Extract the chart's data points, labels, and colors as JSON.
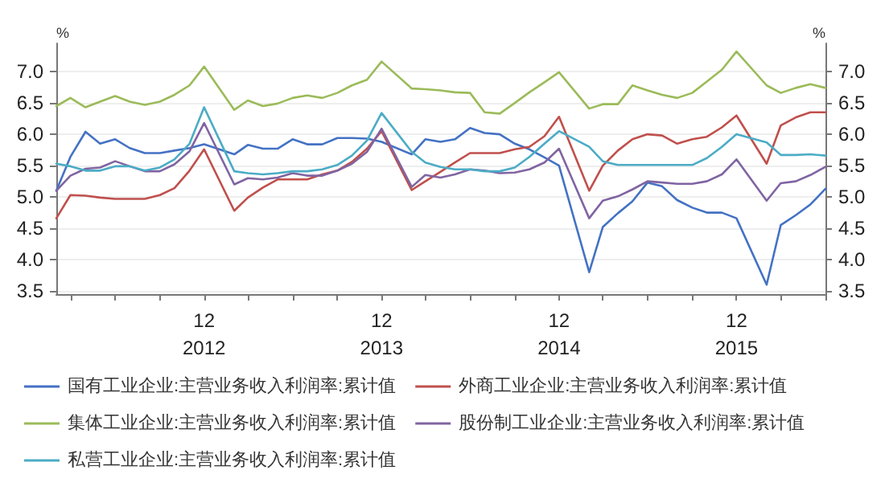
{
  "chart_data": {
    "type": "line",
    "ylabel": "%",
    "y2label": "%",
    "x": [
      "2012-02",
      "2012-03",
      "2012-04",
      "2012-05",
      "2012-06",
      "2012-07",
      "2012-08",
      "2012-09",
      "2012-10",
      "2012-11",
      "2012-12",
      "2013-02",
      "2013-03",
      "2013-04",
      "2013-05",
      "2013-06",
      "2013-07",
      "2013-08",
      "2013-09",
      "2013-10",
      "2013-11",
      "2013-12",
      "2014-02",
      "2014-03",
      "2014-04",
      "2014-05",
      "2014-06",
      "2014-07",
      "2014-08",
      "2014-09",
      "2014-10",
      "2014-11",
      "2014-12",
      "2015-02",
      "2015-03",
      "2015-04",
      "2015-05",
      "2015-06",
      "2015-07",
      "2015-08",
      "2015-09",
      "2015-10",
      "2015-11",
      "2015-12",
      "2016-02",
      "2016-03",
      "2016-04",
      "2016-05",
      "2016-06"
    ],
    "series": [
      {
        "name": "国有工业企业:主营业务收入利润率:累计值",
        "color": "#4472c4",
        "values": [
          5.1,
          5.64,
          6.04,
          5.85,
          5.92,
          5.78,
          5.7,
          5.7,
          5.74,
          5.78,
          5.84,
          5.68,
          5.83,
          5.77,
          5.77,
          5.92,
          5.84,
          5.84,
          5.94,
          5.94,
          5.93,
          5.88,
          5.68,
          5.92,
          5.88,
          5.92,
          6.1,
          6.02,
          6.0,
          5.85,
          5.76,
          5.63,
          5.5,
          3.8,
          4.52,
          4.74,
          4.93,
          5.23,
          5.17,
          4.95,
          4.83,
          4.75,
          4.75,
          4.66,
          3.6,
          4.55,
          4.71,
          4.88,
          5.13
        ]
      },
      {
        "name": "外商工业企业:主营业务收入利润率:累计值",
        "color": "#c0504d",
        "values": [
          4.66,
          5.03,
          5.02,
          4.99,
          4.97,
          4.97,
          4.97,
          5.03,
          5.14,
          5.42,
          5.76,
          4.78,
          4.99,
          5.15,
          5.28,
          5.28,
          5.28,
          5.36,
          5.42,
          5.56,
          5.77,
          6.05,
          5.11,
          5.25,
          5.4,
          5.55,
          5.7,
          5.7,
          5.7,
          5.76,
          5.8,
          5.97,
          6.28,
          5.1,
          5.5,
          5.74,
          5.92,
          6.0,
          5.98,
          5.85,
          5.92,
          5.96,
          6.11,
          6.3,
          5.53,
          6.14,
          6.27,
          6.35,
          6.35
        ]
      },
      {
        "name": "集体工业企业:主营业务收入利润率:累计值",
        "color": "#9bbb59",
        "values": [
          6.45,
          6.58,
          6.43,
          6.52,
          6.61,
          6.52,
          6.47,
          6.52,
          6.63,
          6.78,
          7.08,
          6.39,
          6.54,
          6.45,
          6.49,
          6.58,
          6.62,
          6.58,
          6.66,
          6.78,
          6.87,
          7.16,
          6.73,
          6.72,
          6.7,
          6.67,
          6.66,
          6.35,
          6.33,
          6.5,
          6.67,
          6.83,
          6.99,
          6.41,
          6.48,
          6.48,
          6.78,
          6.7,
          6.63,
          6.58,
          6.66,
          6.84,
          7.03,
          7.32,
          6.78,
          6.66,
          6.74,
          6.8,
          6.74
        ]
      },
      {
        "name": "股份制工业企业:主营业务收入利润率:累计值",
        "color": "#8064a2",
        "values": [
          5.1,
          5.34,
          5.45,
          5.47,
          5.57,
          5.49,
          5.41,
          5.41,
          5.52,
          5.73,
          6.18,
          5.2,
          5.3,
          5.28,
          5.31,
          5.38,
          5.34,
          5.34,
          5.42,
          5.53,
          5.72,
          6.09,
          5.16,
          5.35,
          5.31,
          5.36,
          5.44,
          5.42,
          5.38,
          5.39,
          5.44,
          5.55,
          5.77,
          4.66,
          4.94,
          5.01,
          5.12,
          5.25,
          5.23,
          5.21,
          5.21,
          5.25,
          5.36,
          5.6,
          4.94,
          5.22,
          5.25,
          5.35,
          5.48
        ]
      },
      {
        "name": "私营工业企业:主营业务收入利润率:累计值",
        "color": "#4bacc6",
        "values": [
          5.53,
          5.49,
          5.42,
          5.42,
          5.49,
          5.49,
          5.42,
          5.47,
          5.6,
          5.85,
          6.43,
          5.41,
          5.38,
          5.36,
          5.38,
          5.41,
          5.41,
          5.44,
          5.51,
          5.66,
          5.9,
          6.34,
          5.72,
          5.55,
          5.48,
          5.44,
          5.44,
          5.41,
          5.41,
          5.47,
          5.64,
          5.85,
          6.05,
          5.8,
          5.57,
          5.51,
          5.51,
          5.51,
          5.51,
          5.51,
          5.51,
          5.62,
          5.8,
          6.0,
          5.87,
          5.67,
          5.67,
          5.68,
          5.66
        ]
      }
    ],
    "xlim": [
      "2012-02",
      "2016-06"
    ],
    "xticks": [
      {
        "value": "2012-03",
        "label": null
      },
      {
        "value": "2012-06",
        "label": null
      },
      {
        "value": "2012-09",
        "label": null
      },
      {
        "value": "2012-12",
        "label": "12\n2012"
      },
      {
        "value": "2013-03",
        "label": null
      },
      {
        "value": "2013-06",
        "label": null
      },
      {
        "value": "2013-09",
        "label": null
      },
      {
        "value": "2013-12",
        "label": "12\n2013"
      },
      {
        "value": "2014-03",
        "label": null
      },
      {
        "value": "2014-06",
        "label": null
      },
      {
        "value": "2014-09",
        "label": null
      },
      {
        "value": "2014-12",
        "label": "12\n2014"
      },
      {
        "value": "2015-03",
        "label": null
      },
      {
        "value": "2015-06",
        "label": null
      },
      {
        "value": "2015-09",
        "label": null
      },
      {
        "value": "2015-12",
        "label": "12\n2015"
      },
      {
        "value": "2016-03",
        "label": null
      },
      {
        "value": "2016-06",
        "label": null
      }
    ],
    "ylim": [
      3.45,
      7.45
    ],
    "yticks": [
      3.5,
      {
        "value": 4,
        "label": "4.0"
      },
      4.5,
      {
        "value": 5,
        "label": "5.0"
      },
      5.5,
      {
        "value": 6,
        "label": "6.0"
      },
      6.5,
      {
        "value": 7,
        "label": "7.0"
      }
    ],
    "y2lim": [
      3.45,
      7.45
    ],
    "y2ticks": [
      3.5,
      {
        "value": 4,
        "label": "4.0"
      },
      4.5,
      {
        "value": 5,
        "label": "5.0"
      },
      5.5,
      {
        "value": 6,
        "label": "6.0"
      },
      6.5,
      {
        "value": 7,
        "label": "7.0"
      }
    ],
    "grid": "y",
    "legend": "bottom",
    "marker": "none",
    "line_style": "solid"
  }
}
